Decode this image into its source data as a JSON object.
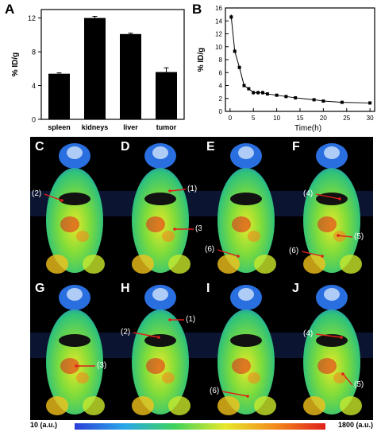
{
  "colors": {
    "bar": "#000000",
    "line": "#000000",
    "image_bg": "#000000",
    "arrow": "#e0201a"
  },
  "chart_data": [
    {
      "panel": "A",
      "type": "bar",
      "categories": [
        "spleen",
        "kidneys",
        "liver",
        "tumor"
      ],
      "values": [
        5.4,
        12.0,
        10.1,
        5.6
      ],
      "errors": [
        0.1,
        0.2,
        0.1,
        0.5
      ],
      "ylabel": "% ID/g",
      "xlabel": "",
      "ylim": [
        0,
        13
      ],
      "yticks": [
        0,
        4,
        8,
        12
      ],
      "grid": false
    },
    {
      "panel": "B",
      "type": "line",
      "x": [
        0.25,
        1,
        2,
        3,
        4,
        5,
        6,
        7,
        8,
        10,
        12,
        14,
        18,
        20,
        24,
        30
      ],
      "y": [
        14.6,
        9.3,
        6.8,
        4.0,
        3.5,
        2.9,
        2.9,
        2.9,
        2.7,
        2.5,
        2.3,
        2.1,
        1.8,
        1.6,
        1.4,
        1.3
      ],
      "errors": [
        0.4,
        0.2,
        0.2,
        0.2,
        0.2,
        0.3,
        0.3,
        0.3,
        0.2,
        0.1,
        0.1,
        0.1,
        0.1,
        0.1,
        0.1,
        0.1
      ],
      "ylabel": "% ID/g",
      "xlabel": "Time(h)",
      "xlim": [
        -1,
        31
      ],
      "ylim": [
        0,
        16
      ],
      "xticks": [
        0,
        5,
        10,
        15,
        20,
        25,
        30
      ],
      "yticks": [
        0,
        2,
        4,
        6,
        8,
        10,
        12,
        14,
        16
      ],
      "grid": false
    }
  ],
  "images": {
    "panels": [
      {
        "letter": "C",
        "annotations": [
          "(2)"
        ]
      },
      {
        "letter": "D",
        "annotations": [
          "(1)",
          "(3)"
        ]
      },
      {
        "letter": "E",
        "annotations": [
          "(6)"
        ]
      },
      {
        "letter": "F",
        "annotations": [
          "(4)",
          "(5)",
          "(6)"
        ]
      },
      {
        "letter": "G",
        "annotations": [
          "(3)"
        ]
      },
      {
        "letter": "H",
        "annotations": [
          "(1)",
          "(2)"
        ]
      },
      {
        "letter": "I",
        "annotations": [
          "(6)"
        ]
      },
      {
        "letter": "J",
        "annotations": [
          "(4)",
          "(5)"
        ]
      }
    ]
  },
  "colorbar": {
    "min_label": "10 (a.u.)",
    "max_label": "1800 (a.u.)"
  },
  "panel_labels": {
    "a": "A",
    "b": "B"
  }
}
